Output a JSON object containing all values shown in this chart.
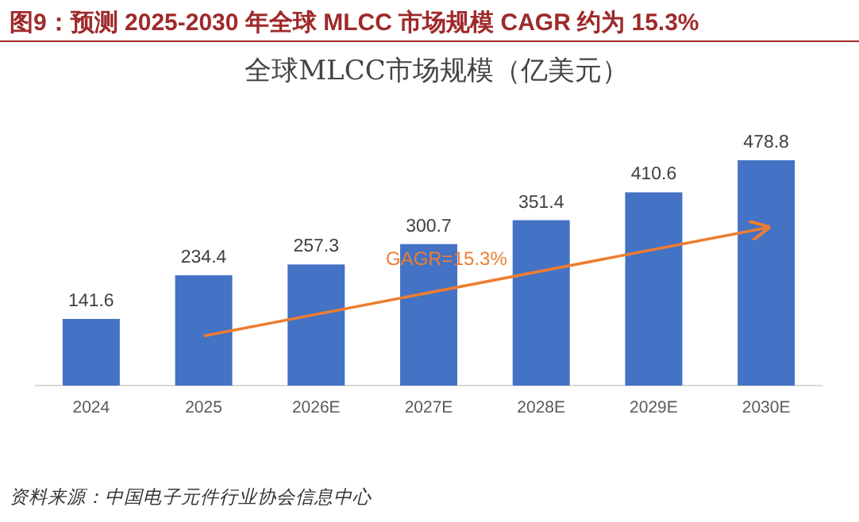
{
  "chart_data": {
    "type": "bar",
    "title": "图9：预测 2025-2030 年全球 MLCC 市场规模 CAGR 约为 15.3%",
    "subtitle": "全球MLCC市场规模（亿美元）",
    "categories": [
      "2024",
      "2025",
      "2026E",
      "2027E",
      "2028E",
      "2029E",
      "2030E"
    ],
    "series": [
      {
        "color": "#4472c4",
        "values": [
          141.6,
          234.4,
          257.3,
          300.7,
          351.4,
          410.6,
          478.8
        ],
        "value_labels": [
          "141.6",
          "234.4",
          "257.3",
          "300.7",
          "351.4",
          "410.6",
          "478.8"
        ]
      }
    ],
    "annotations": [
      "GAGR=15.3%",
      "资料来源：中国电子元件行业协会信息中心"
    ]
  }
}
